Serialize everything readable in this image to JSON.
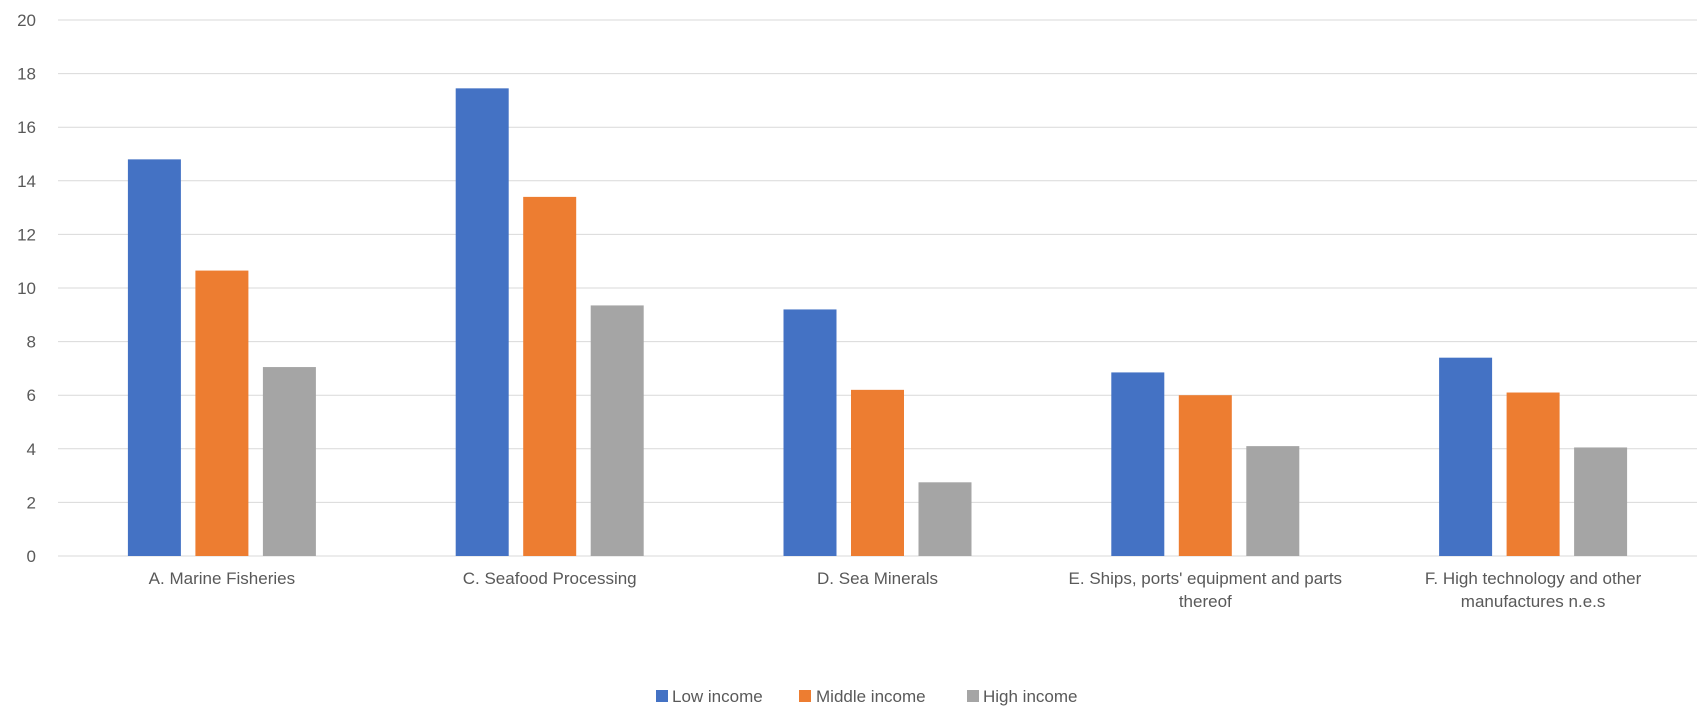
{
  "chart_data": {
    "type": "bar",
    "title": "",
    "xlabel": "",
    "ylabel": "",
    "ylim": [
      0,
      20
    ],
    "yticks": [
      0,
      2,
      4,
      6,
      8,
      10,
      12,
      14,
      16,
      18,
      20
    ],
    "grid": true,
    "legend_position": "bottom",
    "categories": [
      [
        "A. Marine Fisheries"
      ],
      [
        "C. Seafood Processing"
      ],
      [
        "D. Sea Minerals"
      ],
      [
        "E. Ships, ports' equipment and parts",
        "thereof"
      ],
      [
        "F. High technology and other",
        "manufactures n.e.s"
      ]
    ],
    "series": [
      {
        "name": "Low income",
        "color": "#4472C4",
        "values": [
          14.8,
          17.45,
          9.2,
          6.85,
          7.4
        ]
      },
      {
        "name": "Middle income",
        "color": "#ED7D31",
        "values": [
          10.65,
          13.4,
          6.2,
          6.0,
          6.1
        ]
      },
      {
        "name": "High income",
        "color": "#A5A5A5",
        "values": [
          7.05,
          9.35,
          2.75,
          4.1,
          4.05
        ]
      }
    ]
  }
}
